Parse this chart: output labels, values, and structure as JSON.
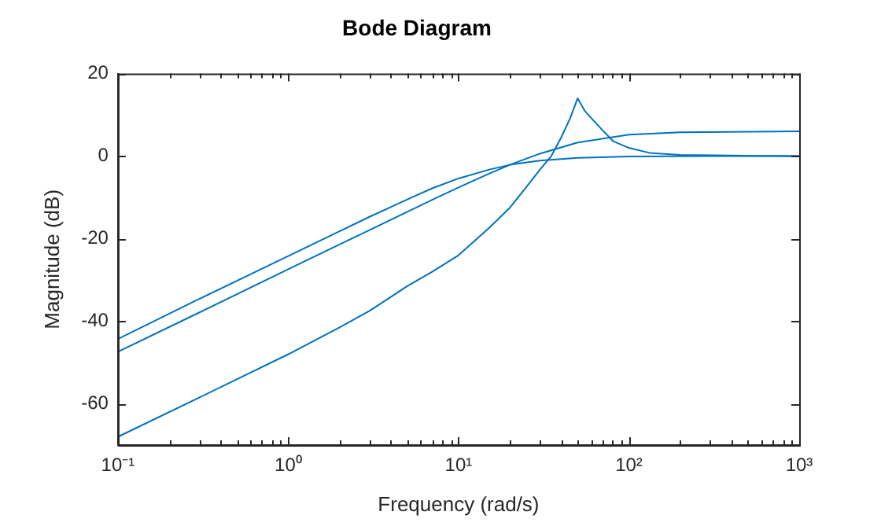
{
  "chart_data": {
    "type": "line",
    "title": "Bode Diagram",
    "xlabel": "Frequency (rad/s)",
    "ylabel": "Magnitude (dB)",
    "log": "x",
    "grid": false,
    "legend": false,
    "marker": "none",
    "line_style": "solid",
    "xlim": [
      0.1,
      1000
    ],
    "ylim": [
      -70,
      20
    ],
    "xticks": [
      {
        "value": 0.1,
        "label": "10⁻¹"
      },
      {
        "value": 1,
        "label": "10⁰"
      },
      {
        "value": 10,
        "label": "10¹"
      },
      {
        "value": 100,
        "label": "10²"
      },
      {
        "value": 1000,
        "label": "10³"
      }
    ],
    "yticks": [
      -60,
      -40,
      -20,
      0,
      20
    ],
    "series": [
      {
        "color": "#0072bd",
        "x": [
          0.1,
          0.3,
          1,
          2,
          3,
          5,
          7,
          10,
          15,
          20,
          30,
          50,
          100,
          300,
          1000
        ],
        "values": [
          -44.3,
          -34.6,
          -24.2,
          -18.2,
          -14.7,
          -10.5,
          -7.8,
          -5.4,
          -3.3,
          -2.1,
          -1.1,
          -0.4,
          -0.1,
          0,
          0
        ]
      },
      {
        "color": "#0072bd",
        "x": [
          0.1,
          0.3,
          1,
          2,
          3,
          5,
          7,
          10,
          15,
          20,
          30,
          50,
          100,
          200,
          1000
        ],
        "values": [
          -47.4,
          -37.9,
          -27.4,
          -21.4,
          -17.9,
          -13.5,
          -10.6,
          -7.6,
          -4.3,
          -2.1,
          0.6,
          3.3,
          5.2,
          5.8,
          6
        ]
      },
      {
        "color": "#0072bd",
        "x": [
          0.1,
          0.3,
          1,
          2,
          3,
          5,
          7,
          10,
          15,
          20,
          25,
          30,
          35,
          40,
          45,
          50,
          55,
          65,
          81,
          100,
          132,
          200,
          500,
          1000
        ],
        "values": [
          -68,
          -58.5,
          -48,
          -41.5,
          -37.5,
          -31.5,
          -28,
          -24,
          -17.5,
          -12.5,
          -7.5,
          -3.3,
          0,
          4.5,
          9,
          14,
          11,
          7.7,
          3.6,
          2,
          0.8,
          0.3,
          0.1,
          0
        ]
      }
    ]
  }
}
